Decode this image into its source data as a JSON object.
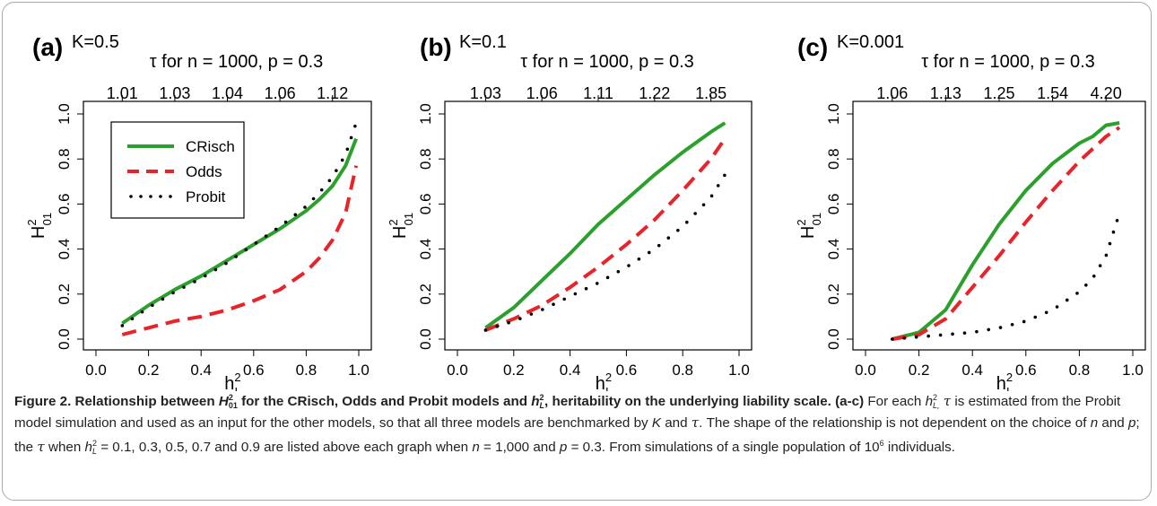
{
  "colors": {
    "crisch": "#2ca02c",
    "odds": "#e8232a",
    "probit": "#000000",
    "axis": "#000000",
    "frame": "#aaaaaa"
  },
  "legend": {
    "entries": [
      "CRisch",
      "Odds",
      "Probit"
    ]
  },
  "chart_data": [
    {
      "type": "line",
      "panel_label": "(a)",
      "k_label": "K=0.5",
      "top_axis_title": "τ  for n = 1000, p = 0.3",
      "top_ticks": [
        "1.01",
        "1.03",
        "1.04",
        "1.06",
        "1.12"
      ],
      "top_tick_x": [
        0.1,
        0.3,
        0.5,
        0.7,
        0.9
      ],
      "xlabel": "h_L^2",
      "ylabel": "H_01^2",
      "xlim": [
        0.0,
        1.0
      ],
      "ylim": [
        0.0,
        1.0
      ],
      "xticks": [
        "0.0",
        "0.2",
        "0.4",
        "0.6",
        "0.8",
        "1.0"
      ],
      "yticks": [
        "0.0",
        "0.2",
        "0.4",
        "0.6",
        "0.8",
        "1.0"
      ],
      "has_legend": true,
      "series": [
        {
          "name": "CRisch",
          "style": "solid",
          "x": [
            0.1,
            0.2,
            0.3,
            0.4,
            0.5,
            0.6,
            0.7,
            0.8,
            0.85,
            0.9,
            0.95,
            0.99
          ],
          "y": [
            0.07,
            0.15,
            0.22,
            0.28,
            0.35,
            0.42,
            0.49,
            0.57,
            0.62,
            0.68,
            0.77,
            0.89
          ]
        },
        {
          "name": "Odds",
          "style": "dashed",
          "x": [
            0.1,
            0.2,
            0.3,
            0.4,
            0.5,
            0.6,
            0.7,
            0.8,
            0.85,
            0.9,
            0.95,
            0.99
          ],
          "y": [
            0.02,
            0.05,
            0.08,
            0.1,
            0.13,
            0.17,
            0.22,
            0.3,
            0.36,
            0.44,
            0.56,
            0.77
          ]
        },
        {
          "name": "Probit",
          "style": "dotted",
          "x": [
            0.1,
            0.2,
            0.3,
            0.4,
            0.5,
            0.6,
            0.7,
            0.8,
            0.85,
            0.9,
            0.95,
            0.99
          ],
          "y": [
            0.06,
            0.14,
            0.21,
            0.27,
            0.34,
            0.42,
            0.5,
            0.59,
            0.65,
            0.72,
            0.82,
            0.96
          ]
        }
      ]
    },
    {
      "type": "line",
      "panel_label": "(b)",
      "k_label": "K=0.1",
      "top_axis_title": "τ  for n = 1000, p = 0.3",
      "top_ticks": [
        "1.03",
        "1.06",
        "1.11",
        "1.22",
        "1.85"
      ],
      "top_tick_x": [
        0.1,
        0.3,
        0.5,
        0.7,
        0.9
      ],
      "xlabel": "h_L^2",
      "ylabel": "H_01^2",
      "xlim": [
        0.0,
        1.0
      ],
      "ylim": [
        0.0,
        1.0
      ],
      "xticks": [
        "0.0",
        "0.2",
        "0.4",
        "0.6",
        "0.8",
        "1.0"
      ],
      "yticks": [
        "0.0",
        "0.2",
        "0.4",
        "0.6",
        "0.8",
        "1.0"
      ],
      "has_legend": false,
      "series": [
        {
          "name": "CRisch",
          "style": "solid",
          "x": [
            0.1,
            0.2,
            0.3,
            0.4,
            0.5,
            0.6,
            0.7,
            0.8,
            0.9,
            0.95
          ],
          "y": [
            0.05,
            0.14,
            0.26,
            0.38,
            0.51,
            0.62,
            0.73,
            0.83,
            0.92,
            0.96
          ]
        },
        {
          "name": "Odds",
          "style": "dashed",
          "x": [
            0.1,
            0.2,
            0.3,
            0.4,
            0.5,
            0.6,
            0.7,
            0.8,
            0.9,
            0.95
          ],
          "y": [
            0.04,
            0.09,
            0.15,
            0.23,
            0.32,
            0.42,
            0.53,
            0.66,
            0.8,
            0.89
          ]
        },
        {
          "name": "Probit",
          "style": "dotted",
          "x": [
            0.1,
            0.2,
            0.3,
            0.4,
            0.5,
            0.6,
            0.7,
            0.8,
            0.9,
            0.95
          ],
          "y": [
            0.04,
            0.08,
            0.13,
            0.19,
            0.25,
            0.32,
            0.4,
            0.5,
            0.63,
            0.73
          ]
        }
      ]
    },
    {
      "type": "line",
      "panel_label": "(c)",
      "k_label": "K=0.001",
      "top_axis_title": "τ  for n = 1000, p = 0.3",
      "top_ticks": [
        "1.06",
        "1.13",
        "1.25",
        "1.54",
        "4.20"
      ],
      "top_tick_x": [
        0.1,
        0.3,
        0.5,
        0.7,
        0.9
      ],
      "xlabel": "h_L^2",
      "ylabel": "H_01^2",
      "xlim": [
        0.0,
        1.0
      ],
      "ylim": [
        0.0,
        1.0
      ],
      "xticks": [
        "0.0",
        "0.2",
        "0.4",
        "0.6",
        "0.8",
        "1.0"
      ],
      "yticks": [
        "0.0",
        "0.2",
        "0.4",
        "0.6",
        "0.8",
        "1.0"
      ],
      "has_legend": false,
      "series": [
        {
          "name": "CRisch",
          "style": "solid",
          "x": [
            0.1,
            0.2,
            0.3,
            0.4,
            0.5,
            0.6,
            0.7,
            0.8,
            0.85,
            0.9,
            0.95
          ],
          "y": [
            0.0,
            0.03,
            0.13,
            0.33,
            0.51,
            0.66,
            0.78,
            0.87,
            0.9,
            0.95,
            0.96
          ]
        },
        {
          "name": "Odds",
          "style": "dashed",
          "x": [
            0.1,
            0.2,
            0.3,
            0.4,
            0.5,
            0.6,
            0.7,
            0.8,
            0.9,
            0.95
          ],
          "y": [
            0.0,
            0.02,
            0.09,
            0.23,
            0.37,
            0.52,
            0.66,
            0.79,
            0.9,
            0.94
          ]
        },
        {
          "name": "Probit",
          "style": "dotted",
          "x": [
            0.1,
            0.2,
            0.3,
            0.4,
            0.5,
            0.6,
            0.7,
            0.8,
            0.85,
            0.9,
            0.95
          ],
          "y": [
            0.0,
            0.01,
            0.02,
            0.03,
            0.05,
            0.08,
            0.13,
            0.21,
            0.27,
            0.37,
            0.56
          ]
        }
      ]
    }
  ],
  "caption": {
    "fig_label": "Figure 2. Relationship between ",
    "title_mid": " for the CRisch, Odds and Probit models and ",
    "title_end": ", heritability on the underlying liability scale. (a-c)",
    "sym_H": "H",
    "sym_h": "h",
    "sup_2": "2",
    "sub_01": "01",
    "sub_L": "L",
    "sub_L_comma": "L,",
    "tau": "τ",
    "p1a": " For each ",
    "p1b": " ",
    "p1c": " is estimated from the Probit model simulation and used as an input for the other models, so that all three models are benchmarked by ",
    "K": "K",
    "p1d": " and ",
    "p1e": ".  The shape of the relationship is not dependent on the choice of ",
    "n": "n",
    "p1f": " and ",
    "p": "p",
    "p1g": "; the ",
    "p1h": " when ",
    "p1i": " = 0.1, 0.3, 0.5, 0.7 and 0.9 are listed above each graph when ",
    "p1j": " = 1,000 and ",
    "p1k": " = 0.3. From simulations of a single population of 10",
    "sup_6": "6",
    "p1l": " individuals."
  }
}
